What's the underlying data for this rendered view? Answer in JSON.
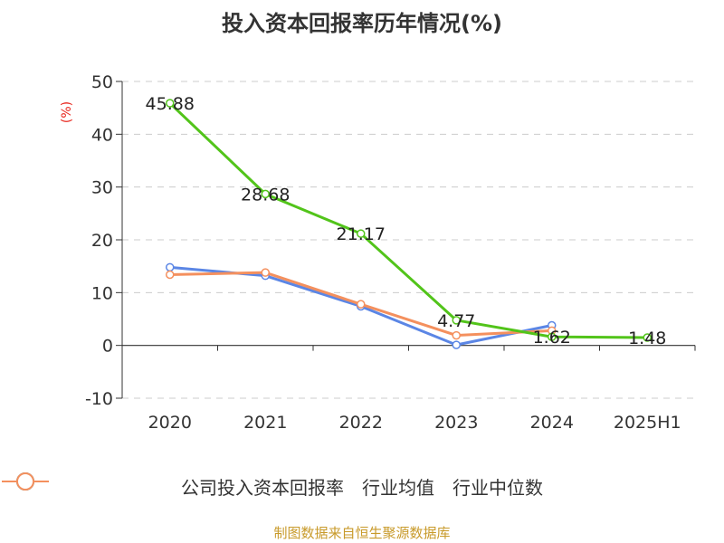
{
  "chart_data": {
    "type": "line",
    "title": "投入资本回报率历年情况(%)",
    "ylabel": "(%)",
    "categories": [
      "2020",
      "2021",
      "2022",
      "2023",
      "2024",
      "2025H1"
    ],
    "ylim": [
      -10,
      50
    ],
    "yticks": [
      -10,
      0,
      10,
      20,
      30,
      40,
      50
    ],
    "grid": true,
    "legend_position": "bottom",
    "series": [
      {
        "name": "公司投入资本回报率",
        "color": "#52c41a",
        "values": [
          45.88,
          28.68,
          21.17,
          4.77,
          1.62,
          1.48
        ],
        "labels": [
          "45.88",
          "28.68",
          "21.17",
          "4.77",
          "1.62",
          "1.48"
        ]
      },
      {
        "name": "行业均值",
        "color": "#5b86e5",
        "values": [
          14.8,
          13.2,
          7.4,
          0.1,
          3.8,
          null
        ]
      },
      {
        "name": "行业中位数",
        "color": "#f4905e",
        "values": [
          13.4,
          13.8,
          7.8,
          1.9,
          2.8,
          null
        ]
      }
    ]
  },
  "source": "制图数据来自恒生聚源数据库"
}
